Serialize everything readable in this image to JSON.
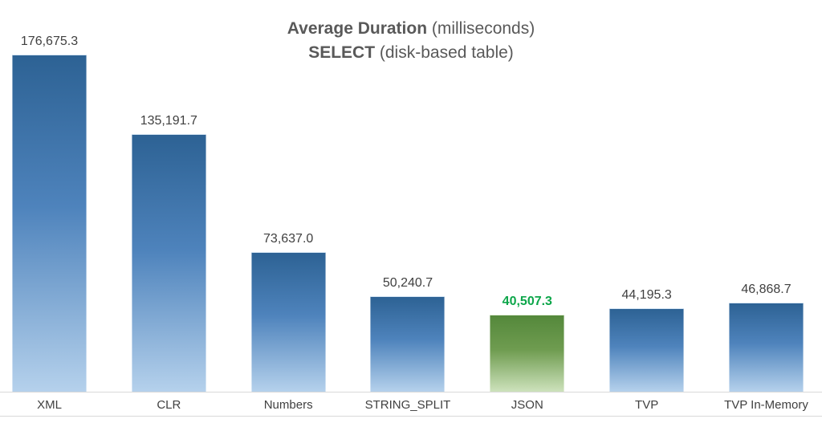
{
  "title": {
    "line1_bold": "Average Duration",
    "line1_regular": " (milliseconds)",
    "line2_bold": "SELECT",
    "line2_regular": " (disk-based table)"
  },
  "chart_data": {
    "type": "bar",
    "title": "Average Duration (milliseconds)",
    "subtitle": "SELECT (disk-based table)",
    "categories": [
      "XML",
      "CLR",
      "Numbers",
      "STRING_SPLIT",
      "JSON",
      "TVP",
      "TVP In-Memory"
    ],
    "values": [
      176675.3,
      135191.7,
      73637.0,
      50240.7,
      40507.3,
      44195.3,
      46868.7
    ],
    "value_labels": [
      "176,675.3",
      "135,191.7",
      "73,637.0",
      "50,240.7",
      "40,507.3",
      "44,195.3",
      "46,868.7"
    ],
    "highlight_index": 4,
    "xlabel": "",
    "ylabel": "",
    "ylim": [
      0,
      180000
    ],
    "grid": false,
    "legend": "none",
    "y_axis_visible": false
  },
  "colors": {
    "background": "#ffffff",
    "title_text": "#595959",
    "value_label_text": "#404040",
    "category_label_text": "#404040",
    "highlight_label_text": "#0DA64A",
    "axis_line": "#D9D9D9",
    "bar_gradient_top": "#2D6294",
    "bar_gradient_mid": "#4E83BC",
    "bar_gradient_bottom": "#B5D1EC",
    "highlight_gradient_top": "#54883B",
    "highlight_gradient_mid": "#6F9C50",
    "highlight_gradient_bottom": "#CDE2BC"
  }
}
